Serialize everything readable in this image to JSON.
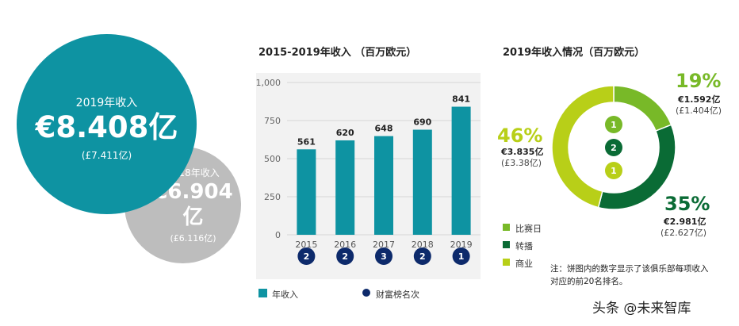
{
  "left": {
    "y2019": {
      "label": "2019年收入",
      "value": "€8.408亿",
      "gbp": "(£7.411亿)"
    },
    "y2018": {
      "label": "2018年收入",
      "value": "€6.904亿",
      "gbp": "(£6.116亿)"
    }
  },
  "bar_chart": {
    "title": "2015-2019年收入 （百万欧元）"
  },
  "donut_chart": {
    "title": "2019年收入情况（百万欧元）"
  },
  "legend_bar": {
    "revenue": "年收入",
    "rank": "财富榜名次"
  },
  "legend_donut": {
    "items": [
      "比赛日",
      "转播",
      "商业"
    ]
  },
  "donut_labels": {
    "matchday": {
      "pct": "19%",
      "eur": "€1.592亿",
      "gbp": "(£1.404亿)"
    },
    "broadcast": {
      "pct": "35%",
      "eur": "€2.981亿",
      "gbp": "(£2.627亿)"
    },
    "commercial": {
      "pct": "46%",
      "eur": "€3.835亿",
      "gbp": "(£3.38亿)"
    }
  },
  "note": "注：饼图内的数字显示了该俱乐部每项收入对应的前20名排名。",
  "watermark": "头条 @未来智库",
  "colors": {
    "teal": "#0e93a2",
    "navy": "#0d2a6b",
    "lightgreen": "#78b928",
    "darkgreen": "#0a6b35",
    "lime": "#b8cf18",
    "grey": "#bdbdbd"
  },
  "chart_data": [
    {
      "type": "bar",
      "title": "2015-2019年收入 （百万欧元）",
      "categories": [
        "2015",
        "2016",
        "2017",
        "2018",
        "2019"
      ],
      "series": [
        {
          "name": "年收入",
          "values": [
            561,
            620,
            648,
            690,
            841
          ]
        },
        {
          "name": "财富榜名次",
          "values": [
            2,
            2,
            3,
            2,
            1
          ]
        }
      ],
      "yticks": [
        "0",
        "250",
        "500",
        "750",
        "1,000"
      ],
      "ylim": [
        0,
        1000
      ],
      "grid": true,
      "legend": "bottom"
    },
    {
      "type": "pie",
      "title": "2019年收入情况（百万欧元）",
      "labels": [
        "比赛日",
        "转播",
        "商业"
      ],
      "values": [
        19,
        35,
        46
      ],
      "ranks": [
        "1",
        "2",
        "1"
      ],
      "legend": "bottom-left"
    }
  ]
}
